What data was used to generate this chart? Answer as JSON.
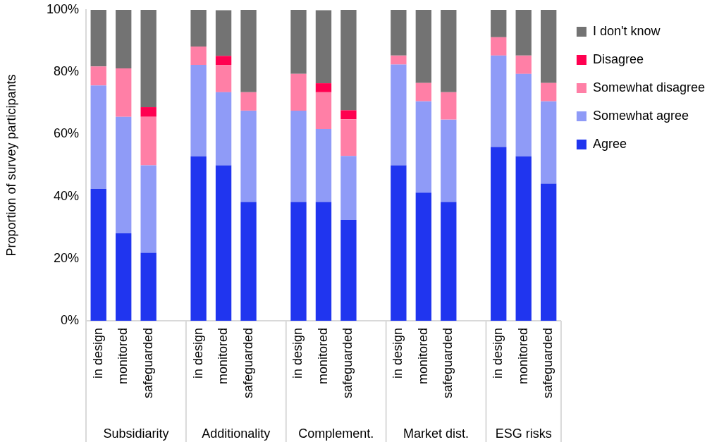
{
  "chart_data": {
    "type": "bar",
    "stacked": true,
    "ylabel": "Proportion of survey participants",
    "categories": [
      "in design",
      "monitored",
      "safeguarded",
      null,
      "in design",
      "monitored",
      "safeguarded",
      null,
      "in design",
      "monitored",
      "safeguarded",
      null,
      "in design",
      "monitored",
      "safeguarded",
      null,
      "in design",
      "monitored",
      "safeguarded"
    ],
    "series": [
      {
        "name": "Agree",
        "color": "#2035ef",
        "values": [
          42.4,
          28.1,
          21.9,
          null,
          52.9,
          50,
          38.2,
          null,
          38.2,
          38.2,
          32.4,
          null,
          50,
          41.2,
          38.2,
          null,
          55.9,
          52.9,
          44.1
        ]
      },
      {
        "name": "Somewhat agree",
        "color": "#8f9bf7",
        "values": [
          33.3,
          37.5,
          28.1,
          null,
          29.4,
          23.5,
          29.4,
          null,
          29.4,
          23.5,
          20.6,
          null,
          32.4,
          29.4,
          26.5,
          null,
          29.4,
          26.5,
          26.5
        ]
      },
      {
        "name": "Somewhat disagree",
        "color": "#ff7fa6",
        "values": [
          6.1,
          15.6,
          15.6,
          null,
          5.9,
          8.8,
          5.9,
          null,
          11.8,
          11.8,
          11.8,
          null,
          2.9,
          5.9,
          8.8,
          null,
          5.9,
          5.9,
          5.9
        ]
      },
      {
        "name": "Disagree",
        "color": "#ff0050",
        "values": [
          0,
          0,
          3.1,
          null,
          0,
          2.9,
          0,
          null,
          0,
          2.9,
          2.9,
          null,
          0,
          0,
          0,
          null,
          0,
          0,
          0
        ]
      },
      {
        "name": "I don't know",
        "color": "#737373",
        "values": [
          18.2,
          18.8,
          31.3,
          null,
          11.8,
          14.7,
          26.5,
          null,
          20.6,
          23.5,
          32.4,
          null,
          14.7,
          23.5,
          26.5,
          null,
          8.8,
          14.7,
          23.5
        ]
      }
    ],
    "ylim": [
      0,
      100
    ],
    "yticks": [
      {
        "value": 0,
        "label": "0%"
      },
      {
        "value": 20,
        "label": "20%"
      },
      {
        "value": 40,
        "label": "40%"
      },
      {
        "value": 60,
        "label": "60%"
      },
      {
        "value": 80,
        "label": "80%"
      },
      {
        "value": 100,
        "label": "100%"
      }
    ],
    "annotations": [
      "Subsidiarity",
      "Additionality",
      "Complement.",
      "Market dist.",
      "ESG risks"
    ],
    "grid": false,
    "legend": "right"
  }
}
